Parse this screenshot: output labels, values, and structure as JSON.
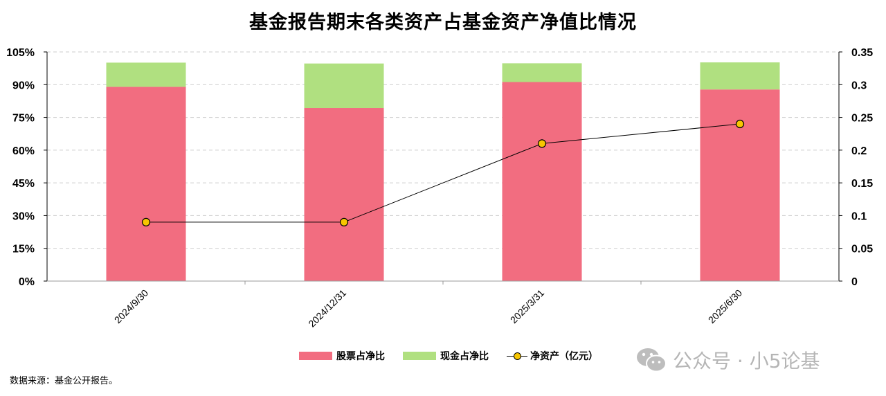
{
  "title": "基金报告期末各类资产占基金资产净值比情况",
  "source": "数据来源：基金公开报告。",
  "watermark": {
    "icon": "wechat-icon",
    "text": "公众号 · 小5论基"
  },
  "colors": {
    "stock": "#f26d80",
    "cash": "#b0e080",
    "line": "#000000",
    "marker": "#f7c600",
    "grid": "#cccccc"
  },
  "chart_data": {
    "type": "bar",
    "stacked": true,
    "categories": [
      "2024/9/30",
      "2024/12/31",
      "2025/3/31",
      "2025/6/30"
    ],
    "series": [
      {
        "name": "股票占净比",
        "type": "bar",
        "axis": "left",
        "values": [
          89.0,
          79.3,
          91.2,
          87.8
        ]
      },
      {
        "name": "现金占净比",
        "type": "bar",
        "axis": "left",
        "values": [
          11.1,
          20.4,
          8.6,
          12.4
        ]
      },
      {
        "name": "净资产（亿元）",
        "type": "line",
        "axis": "right",
        "values": [
          0.09,
          0.09,
          0.21,
          0.24
        ]
      }
    ],
    "y_left": {
      "ticks": [
        "0%",
        "15%",
        "30%",
        "45%",
        "60%",
        "75%",
        "90%",
        "105%"
      ],
      "min": 0,
      "max": 105
    },
    "y_right": {
      "ticks": [
        "0",
        "0.05",
        "0.1",
        "0.15",
        "0.2",
        "0.25",
        "0.3",
        "0.35"
      ],
      "min": 0,
      "max": 0.35
    },
    "grid": true,
    "legend_position": "bottom"
  }
}
